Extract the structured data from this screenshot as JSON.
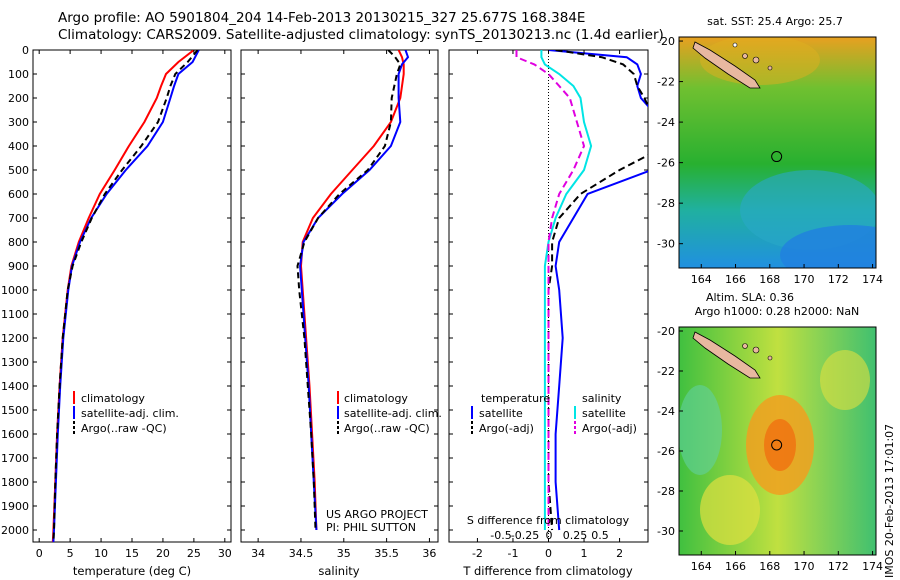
{
  "header": {
    "line1": "Argo profile: AO 5901804_204 14-Feb-2013 20130215_327 25.677S 168.384E",
    "line2": "Climatology: CARS2009. Satellite-adjusted climatology: synTS_20130213.nc (1.4d earlier)"
  },
  "colors": {
    "climatology": "#ff0000",
    "satellite": "#0000ff",
    "argo": "#000000",
    "salinity_sat": "#00e5e5",
    "salinity_argo": "#e000e0"
  },
  "chart_data": [
    {
      "type": "line",
      "xlabel": "temperature (deg C)",
      "xticks": [
        0,
        5,
        10,
        15,
        20,
        25,
        30
      ],
      "xlim": [
        -1,
        31
      ],
      "ylim": [
        2050,
        0
      ],
      "yticks": [
        0,
        100,
        200,
        300,
        400,
        500,
        600,
        700,
        800,
        900,
        1000,
        1100,
        1200,
        1300,
        1400,
        1500,
        1600,
        1700,
        1800,
        1900,
        2000
      ],
      "depth": [
        0,
        50,
        100,
        150,
        200,
        300,
        400,
        500,
        600,
        700,
        800,
        900,
        1000,
        1200,
        1400,
        1600,
        1800,
        2000,
        2050
      ],
      "series": [
        {
          "name": "climatology",
          "values": [
            25.0,
            22.5,
            20.5,
            19.7,
            19.0,
            17.0,
            14.5,
            12.2,
            9.8,
            8.0,
            6.4,
            5.2,
            4.6,
            3.8,
            3.3,
            2.9,
            2.6,
            2.3,
            2.2
          ]
        },
        {
          "name": "satellite-adj. clim.",
          "values": [
            25.8,
            24.8,
            22.5,
            21.8,
            21.2,
            20.0,
            17.5,
            14.0,
            10.9,
            8.4,
            6.6,
            5.3,
            4.7,
            3.9,
            3.4,
            3.0,
            2.7,
            2.4,
            2.3
          ]
        },
        {
          "name": "Argo(..raw -QC)",
          "values": [
            25.6,
            24.0,
            22.0,
            21.2,
            20.6,
            19.2,
            16.5,
            13.4,
            10.6,
            8.5,
            6.8,
            5.4,
            4.6,
            3.8,
            3.3,
            2.9,
            2.6,
            2.4,
            2.3
          ]
        }
      ],
      "legend": [
        "climatology",
        "satellite-adj. clim.",
        "Argo(..raw -QC)"
      ]
    },
    {
      "type": "line",
      "xlabel": "salinity",
      "xticks": [
        34,
        34.5,
        35,
        35.5,
        36
      ],
      "xlim": [
        33.8,
        36.1
      ],
      "ylim": [
        2050,
        0
      ],
      "depth": [
        0,
        30,
        60,
        100,
        200,
        300,
        400,
        500,
        600,
        700,
        800,
        900,
        1000,
        1200,
        1400,
        1600,
        1800,
        2000
      ],
      "series": [
        {
          "name": "climatology",
          "values": [
            35.64,
            35.68,
            35.7,
            35.7,
            35.66,
            35.55,
            35.35,
            35.1,
            34.85,
            34.64,
            34.52,
            34.5,
            34.52,
            34.56,
            34.6,
            34.63,
            34.66,
            34.68
          ]
        },
        {
          "name": "satellite-adj. clim.",
          "values": [
            35.72,
            35.75,
            35.68,
            35.64,
            35.64,
            35.66,
            35.55,
            35.3,
            34.98,
            34.7,
            34.53,
            34.49,
            34.51,
            34.55,
            34.59,
            34.62,
            34.65,
            34.68
          ]
        },
        {
          "name": "Argo(..raw -QC)",
          "values": [
            35.52,
            35.6,
            35.66,
            35.62,
            35.56,
            35.55,
            35.48,
            35.28,
            34.95,
            34.7,
            34.54,
            34.46,
            34.48,
            34.54,
            34.58,
            34.62,
            34.65,
            34.67
          ]
        }
      ],
      "legend": [
        "climatology",
        "satellite-adj. clim.",
        "Argo(..raw -QC)"
      ],
      "annotation": [
        "US ARGO PROJECT",
        "PI: PHIL SUTTON"
      ]
    },
    {
      "type": "line",
      "xlabel": "T difference from climatology",
      "xlabel_top": "S difference from climatology",
      "xticks": [
        -2,
        -1,
        0,
        1,
        2
      ],
      "sticks": [
        "-0.5",
        "-0.25",
        "0",
        "0.25",
        "0.5"
      ],
      "xlim": [
        -2.8,
        2.8
      ],
      "ylim": [
        2050,
        0
      ],
      "depth": [
        0,
        30,
        60,
        100,
        150,
        200,
        300,
        400,
        500,
        600,
        700,
        800,
        900,
        1000,
        1200,
        1400,
        1600,
        1800,
        2000
      ],
      "series": [
        {
          "name": "temperature satellite",
          "values": [
            0.0,
            2.2,
            2.5,
            2.6,
            2.5,
            2.6,
            3.2,
            3.5,
            2.9,
            1.1,
            0.7,
            0.3,
            0.2,
            0.3,
            0.4,
            0.3,
            0.2,
            0.2,
            0.3
          ]
        },
        {
          "name": "temperature Argo(-adj)",
          "values": [
            0.2,
            1.5,
            2.1,
            2.4,
            2.5,
            2.7,
            3.0,
            3.3,
            2.0,
            0.9,
            0.3,
            0.1,
            0.1,
            0.0,
            0.0,
            0.0,
            0.0,
            0.0,
            0.1
          ]
        },
        {
          "name": "salinity satellite",
          "values": [
            -0.2,
            -0.2,
            -0.1,
            0.3,
            0.7,
            0.9,
            1.0,
            1.2,
            1.0,
            0.5,
            0.2,
            0.0,
            -0.1,
            -0.1,
            -0.1,
            -0.1,
            -0.1,
            -0.1,
            -0.1
          ]
        },
        {
          "name": "salinity Argo(-adj)",
          "values": [
            -0.9,
            -0.9,
            -0.4,
            0.0,
            0.3,
            0.6,
            0.8,
            1.0,
            0.7,
            0.3,
            0.1,
            0.0,
            0.0,
            0.0,
            0.0,
            0.0,
            0.0,
            0.0,
            0.0
          ]
        }
      ],
      "legend_titles": [
        "temperature",
        "salinity"
      ],
      "legend": [
        "satellite",
        "Argo(-adj)",
        "satellite",
        "Argo(-adj)"
      ]
    },
    {
      "type": "heatmap",
      "title": "sat. SST: 25.4  Argo: 25.7",
      "xticks": [
        164,
        166,
        168,
        170,
        172,
        174
      ],
      "yticks": [
        -20,
        -22,
        -24,
        -26,
        -28,
        -30
      ],
      "xlim": [
        162.7,
        174.2
      ],
      "ylim": [
        -31.2,
        -19.8
      ],
      "marker": [
        168.4,
        -25.7
      ]
    },
    {
      "type": "heatmap",
      "title_lines": [
        "Altim. SLA: 0.36",
        "Argo h1000: 0.28 h2000: NaN"
      ],
      "xticks": [
        164,
        166,
        168,
        170,
        172,
        174
      ],
      "yticks": [
        -20,
        -22,
        -24,
        -26,
        -28,
        -30
      ],
      "xlim": [
        162.7,
        174.2
      ],
      "ylim": [
        -31.2,
        -19.8
      ],
      "marker": [
        168.4,
        -25.7
      ]
    }
  ],
  "watermark": "IMOS 20-Feb-2013 17:01:07"
}
